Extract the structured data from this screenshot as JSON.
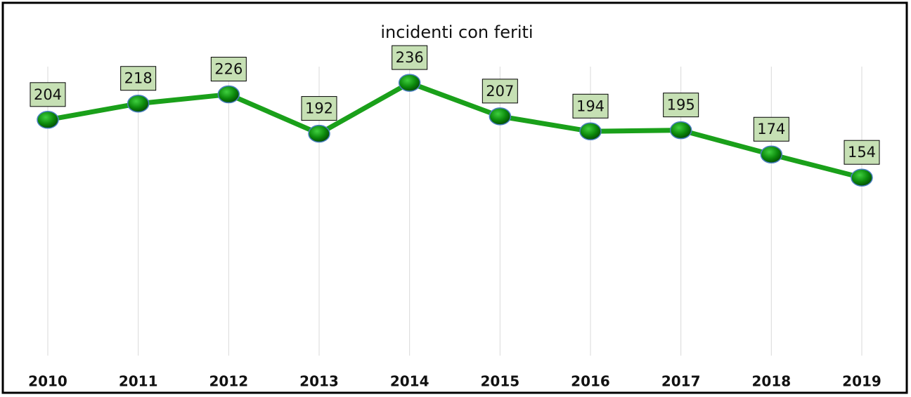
{
  "chart_data": {
    "type": "line",
    "title": "incidenti con feriti",
    "categories": [
      "2010",
      "2011",
      "2012",
      "2013",
      "2014",
      "2015",
      "2016",
      "2017",
      "2018",
      "2019"
    ],
    "values": [
      204,
      218,
      226,
      192,
      236,
      207,
      194,
      195,
      174,
      154
    ],
    "color": "#1aa01a",
    "ylim": [
      0,
      250
    ],
    "grid": true
  }
}
